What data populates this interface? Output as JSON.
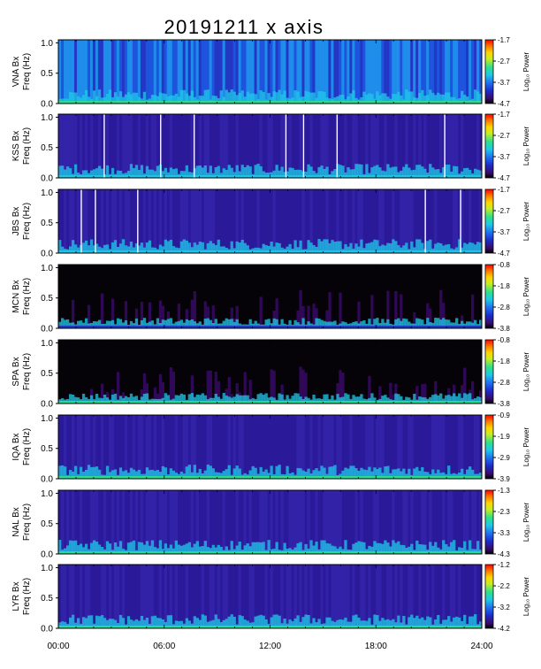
{
  "title": "20191211 x axis",
  "x_tick_labels": [
    "00:00",
    "06:00",
    "12:00",
    "18:00",
    "24:00"
  ],
  "y_tick_labels": [
    "0.0",
    "0.5",
    "1.0"
  ],
  "freq_label": "Freq (Hz)",
  "colorbar_label": "Log₁₀ Power",
  "chart_data": {
    "type": "heatmap",
    "title": "20191211 x axis",
    "x": {
      "label": "",
      "range_hours": [
        0,
        24
      ],
      "ticks": [
        "00:00",
        "06:00",
        "12:00",
        "18:00",
        "24:00"
      ]
    },
    "y": {
      "label": "Freq (Hz)",
      "range": [
        0,
        1.05
      ],
      "ticks": [
        0.0,
        0.5,
        1.0
      ]
    },
    "colormap": [
      "#000000",
      "#3a0a6a",
      "#1e2cc8",
      "#1f6ef0",
      "#1fc8e8",
      "#2ee08a",
      "#c8ee22",
      "#ffd400",
      "#ff7a00",
      "#ff0000"
    ],
    "panels": [
      {
        "station": "VNA Bx",
        "cbar_ticks": [
          "-1.7",
          "-2.7",
          "-3.7",
          "-4.7"
        ],
        "gaps_hours": []
      },
      {
        "station": "KSS Bx",
        "cbar_ticks": [
          "-1.7",
          "-2.7",
          "-3.7",
          "-4.7"
        ],
        "gaps_hours": [
          2.6,
          5.8,
          7.7,
          12.9,
          13.9,
          15.8,
          21.9
        ]
      },
      {
        "station": "JBS Bx",
        "cbar_ticks": [
          "-1.7",
          "-2.7",
          "-3.7",
          "-4.7"
        ],
        "gaps_hours": [
          1.3,
          2.1,
          4.5,
          20.8,
          22.8
        ]
      },
      {
        "station": "MCN Bx",
        "cbar_ticks": [
          "-0.8",
          "-1.8",
          "-2.8",
          "-3.8"
        ],
        "gaps_hours": []
      },
      {
        "station": "SPA Bx",
        "cbar_ticks": [
          "-0.8",
          "-1.8",
          "-2.8",
          "-3.8"
        ],
        "gaps_hours": []
      },
      {
        "station": "IQA Bx",
        "cbar_ticks": [
          "-0.9",
          "-1.9",
          "-2.9",
          "-3.9"
        ],
        "gaps_hours": []
      },
      {
        "station": "NAL Bx",
        "cbar_ticks": [
          "-1.3",
          "-2.3",
          "-3.3",
          "-4.3"
        ],
        "gaps_hours": []
      },
      {
        "station": "LYR Bx",
        "cbar_ticks": [
          "-1.2",
          "-2.2",
          "-3.2",
          "-4.2"
        ],
        "gaps_hours": []
      }
    ]
  }
}
